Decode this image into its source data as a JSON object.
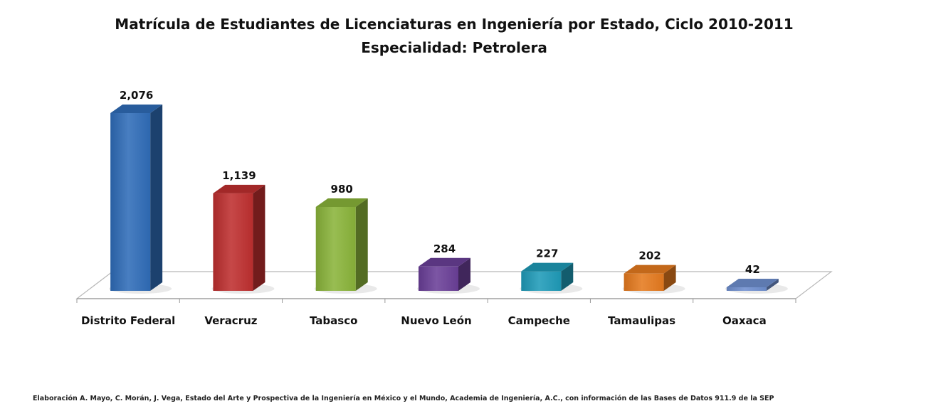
{
  "chart_data": {
    "type": "bar",
    "title": "Matrícula de Estudiantes de Licenciaturas en Ingeniería por Estado, Ciclo 2010-2011",
    "subtitle": "Especialidad: Petrolera",
    "categories": [
      "Distrito Federal",
      "Veracruz",
      "Tabasco",
      "Nuevo León",
      "Campeche",
      "Tamaulipas",
      "Oaxaca"
    ],
    "values": [
      2076,
      1139,
      980,
      284,
      227,
      202,
      42
    ],
    "value_labels": [
      "2,076",
      "1,139",
      "980",
      "284",
      "227",
      "202",
      "42"
    ],
    "colors": [
      "#2f6cb8",
      "#be2f2f",
      "#8ab43a",
      "#6a3f98",
      "#1f9bb8",
      "#e57a1e",
      "#6f8fcf"
    ],
    "grid": false,
    "legend": "none",
    "style": "3d-column"
  },
  "footnote": "Elaboración A. Mayo, C. Morán, J. Vega, Estado del Arte y Prospectiva de la Ingeniería en México y el Mundo, Academia de Ingeniería, A.C., con información de las Bases de Datos  911.9  de la SEP"
}
